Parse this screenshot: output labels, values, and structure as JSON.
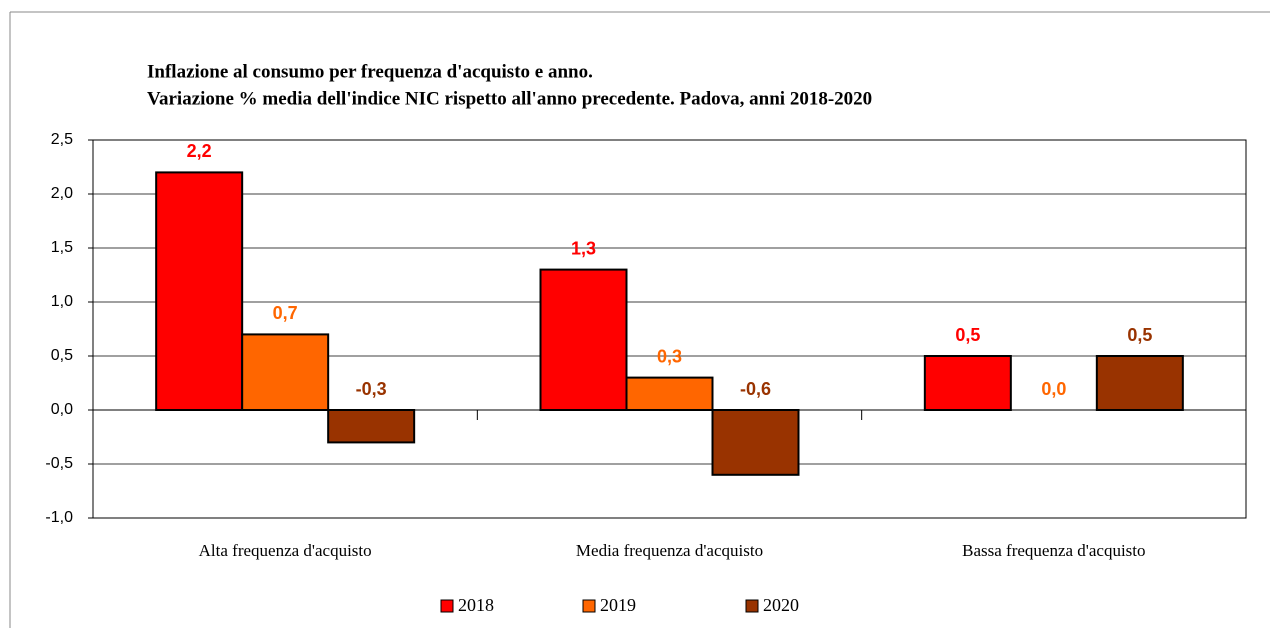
{
  "chart_data": {
    "type": "bar",
    "title": "Inflazione al consumo per frequenza d'acquisto e anno.",
    "subtitle": "Variazione % media dell'indice NIC rispetto all'anno precedente. Padova, anni 2018-2020",
    "categories": [
      "Alta frequenza d'acquisto",
      "Media frequenza d'acquisto",
      "Bassa frequenza d'acquisto"
    ],
    "series": [
      {
        "name": "2018",
        "color": "#ff0000",
        "values": [
          2.2,
          1.3,
          0.5
        ],
        "value_labels": [
          "2,2",
          "1,3",
          "0,5"
        ]
      },
      {
        "name": "2019",
        "color": "#ff6600",
        "values": [
          0.7,
          0.3,
          0.0
        ],
        "value_labels": [
          "0,7",
          "0,3",
          "0,0"
        ]
      },
      {
        "name": "2020",
        "color": "#993300",
        "values": [
          -0.3,
          -0.6,
          0.5
        ],
        "value_labels": [
          "-0,3",
          "-0,6",
          "0,5"
        ]
      }
    ],
    "ylim": [
      -1.0,
      2.5
    ],
    "yticks": [
      {
        "value": -1.0,
        "label": "-1,0"
      },
      {
        "value": -0.5,
        "label": "-0,5"
      },
      {
        "value": 0.0,
        "label": "0,0"
      },
      {
        "value": 0.5,
        "label": "0,5"
      },
      {
        "value": 1.0,
        "label": "1,0"
      },
      {
        "value": 1.5,
        "label": "1,5"
      },
      {
        "value": 2.0,
        "label": "2,0"
      },
      {
        "value": 2.5,
        "label": "2,5"
      }
    ],
    "grid": true,
    "legend": "bottom"
  }
}
